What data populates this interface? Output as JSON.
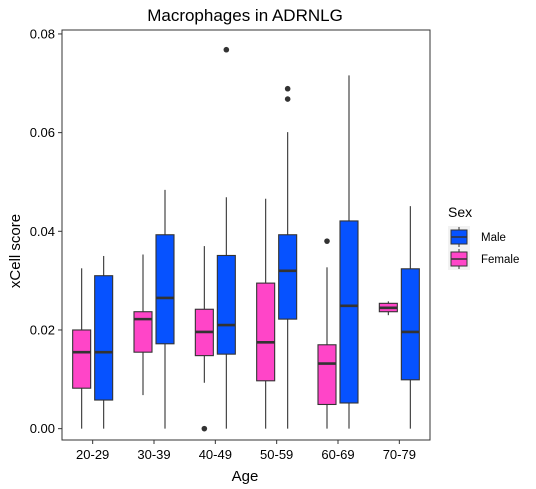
{
  "chart_data": {
    "type": "boxplot",
    "title": "Macrophages in ADRNLG",
    "xlabel": "Age",
    "ylabel": "xCell score",
    "ylim": [
      -0.0023,
      0.0808
    ],
    "y_ticks": [
      "0.00",
      "0.02",
      "0.04",
      "0.06",
      "0.08"
    ],
    "y_tick_values": [
      0,
      0.02,
      0.04,
      0.06,
      0.08
    ],
    "categories": [
      "20-29",
      "30-39",
      "40-49",
      "50-59",
      "60-69",
      "70-79"
    ],
    "legend": {
      "title": "Sex",
      "position": "right"
    },
    "series": [
      {
        "name": "Male",
        "color": "#0652FF",
        "boxes": [
          {
            "category": "20-29",
            "min": 0.0,
            "q1": 0.0058,
            "median": 0.0155,
            "q3": 0.031,
            "max": 0.035,
            "outliers": []
          },
          {
            "category": "30-39",
            "min": 0.0,
            "q1": 0.0172,
            "median": 0.0265,
            "q3": 0.0393,
            "max": 0.0484,
            "outliers": []
          },
          {
            "category": "40-49",
            "min": 0.0,
            "q1": 0.0151,
            "median": 0.021,
            "q3": 0.0351,
            "max": 0.0469,
            "outliers": [
              0.0768
            ]
          },
          {
            "category": "50-59",
            "min": 0.0,
            "q1": 0.0222,
            "median": 0.032,
            "q3": 0.0393,
            "max": 0.0601,
            "outliers": [
              0.0668,
              0.0689
            ]
          },
          {
            "category": "60-69",
            "min": 0.0,
            "q1": 0.0052,
            "median": 0.0249,
            "q3": 0.0421,
            "max": 0.0716,
            "outliers": []
          },
          {
            "category": "70-79",
            "min": 0.0,
            "q1": 0.0099,
            "median": 0.0196,
            "q3": 0.0324,
            "max": 0.0451,
            "outliers": []
          }
        ]
      },
      {
        "name": "Female",
        "color": "#FF45C8",
        "boxes": [
          {
            "category": "20-29",
            "min": 0.0,
            "q1": 0.0082,
            "median": 0.0155,
            "q3": 0.02,
            "max": 0.0325,
            "outliers": []
          },
          {
            "category": "30-39",
            "min": 0.0068,
            "q1": 0.0155,
            "median": 0.0222,
            "q3": 0.0237,
            "max": 0.0353,
            "outliers": []
          },
          {
            "category": "40-49",
            "min": 0.0093,
            "q1": 0.0148,
            "median": 0.0196,
            "q3": 0.0242,
            "max": 0.037,
            "outliers": [
              0.0
            ]
          },
          {
            "category": "50-59",
            "min": 0.0,
            "q1": 0.0097,
            "median": 0.0175,
            "q3": 0.0295,
            "max": 0.0466,
            "outliers": []
          },
          {
            "category": "60-69",
            "min": 0.0,
            "q1": 0.0049,
            "median": 0.0132,
            "q3": 0.017,
            "max": 0.0327,
            "outliers": [
              0.038
            ]
          },
          {
            "category": "70-79",
            "min": 0.023,
            "q1": 0.0237,
            "median": 0.0245,
            "q3": 0.0254,
            "max": 0.0258,
            "outliers": []
          }
        ]
      }
    ],
    "legend_order": [
      "Male",
      "Female"
    ]
  }
}
